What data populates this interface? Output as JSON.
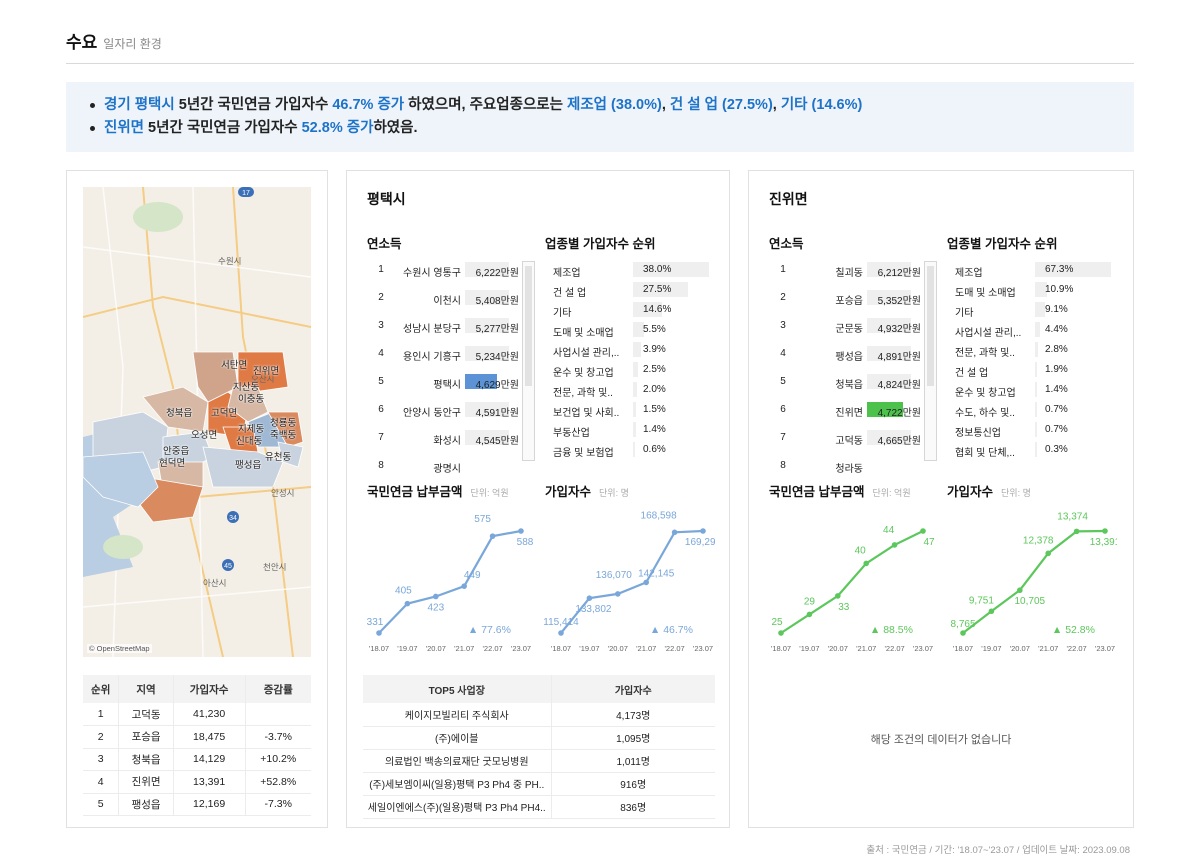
{
  "header": {
    "title": "수요",
    "subtitle": "일자리 환경"
  },
  "summary": {
    "line1": {
      "region": "경기 평택시",
      "t1": " 5년간 국민연금 가입자수 ",
      "rate": "46.7% 증가",
      "t2": " 하였으며, 주요업종으로는 ",
      "ind1": "제조업 (38.0%)",
      "sep1": ", ",
      "ind2": "건 설 업 (27.5%)",
      "sep2": ", ",
      "ind3": "기타 (14.6%)"
    },
    "line2": {
      "region": "진위면",
      "t1": " 5년간 국민연금 가입자수 ",
      "rate": "52.8% 증가",
      "t2": "하였음."
    }
  },
  "map": {
    "credit": "© OpenStreetMap",
    "labels": [
      "서탄면",
      "진위면",
      "지산동",
      "이충동",
      "청북읍",
      "고덕면",
      "오성면",
      "지제동",
      "신대동",
      "청룡동",
      "죽백동",
      "유천동",
      "안중읍",
      "현덕면",
      "팽성읍"
    ],
    "bg_labels": [
      "수원시",
      "오산시",
      "안성시",
      "천안시",
      "아산시"
    ]
  },
  "rank_table": {
    "headers": [
      "순위",
      "지역",
      "가입자수",
      "증감률"
    ],
    "rows": [
      [
        "1",
        "고덕동",
        "41,230",
        ""
      ],
      [
        "2",
        "포승읍",
        "18,475",
        "-3.7%"
      ],
      [
        "3",
        "청북읍",
        "14,129",
        "+10.2%"
      ],
      [
        "4",
        "진위면",
        "13,391",
        "+52.8%"
      ],
      [
        "5",
        "팽성읍",
        "12,169",
        "-7.3%"
      ]
    ]
  },
  "city": {
    "title": "평택시",
    "income_title": "연소득",
    "income": [
      {
        "no": "1",
        "name": "수원시 영통구",
        "value": "6,222만원",
        "hl": false
      },
      {
        "no": "2",
        "name": "이천시",
        "value": "5,408만원",
        "hl": false
      },
      {
        "no": "3",
        "name": "성남시 분당구",
        "value": "5,277만원",
        "hl": false
      },
      {
        "no": "4",
        "name": "용인시 기흥구",
        "value": "5,234만원",
        "hl": false
      },
      {
        "no": "5",
        "name": "평택시",
        "value": "4,629만원",
        "hl": true
      },
      {
        "no": "6",
        "name": "안양시 동안구",
        "value": "4,591만원",
        "hl": false
      },
      {
        "no": "7",
        "name": "화성시",
        "value": "4,545만원",
        "hl": false
      },
      {
        "no": "8",
        "name": "광명시",
        "value": "",
        "hl": false
      }
    ],
    "industry_title": "업종별 가입자수 순위",
    "industries": [
      {
        "name": "제조업",
        "value": "38.0%",
        "pct": 38.0
      },
      {
        "name": "건 설 업",
        "value": "27.5%",
        "pct": 27.5
      },
      {
        "name": "기타",
        "value": "14.6%",
        "pct": 14.6
      },
      {
        "name": "도매 및 소매업",
        "value": "5.5%",
        "pct": 5.5
      },
      {
        "name": "사업시설 관리,..",
        "value": "3.9%",
        "pct": 3.9
      },
      {
        "name": "운수 및 창고업",
        "value": "2.5%",
        "pct": 2.5
      },
      {
        "name": "전문, 과학 및..",
        "value": "2.0%",
        "pct": 2.0
      },
      {
        "name": "보건업 및 사회..",
        "value": "1.5%",
        "pct": 1.5
      },
      {
        "name": "부동산업",
        "value": "1.4%",
        "pct": 1.4
      },
      {
        "name": "금융 및 보험업",
        "value": "0.6%",
        "pct": 0.6
      }
    ],
    "pay_title": "국민연금 납부금액",
    "pay_unit": "단위: 억원",
    "members_title": "가입자수",
    "members_unit": "단위: 명",
    "top5": {
      "headers": [
        "TOP5 사업장",
        "가입자수"
      ],
      "rows": [
        [
          "케이지모빌리티 주식회사",
          "4,173명"
        ],
        [
          "(주)에이블",
          "1,095명"
        ],
        [
          "의료법인 백송의료재단 굿모닝병원",
          "1,011명"
        ],
        [
          "(주)세보엠이씨(일용)평택 P3 Ph4 중 PH..",
          "916명"
        ],
        [
          "세일이엔에스(주)(일용)평택 P3 Ph4 PH4..",
          "836명"
        ]
      ]
    }
  },
  "town": {
    "title": "진위면",
    "income_title": "연소득",
    "income": [
      {
        "no": "1",
        "name": "칠괴동",
        "value": "6,212만원",
        "hl": false
      },
      {
        "no": "2",
        "name": "포승읍",
        "value": "5,352만원",
        "hl": false
      },
      {
        "no": "3",
        "name": "군문동",
        "value": "4,932만원",
        "hl": false
      },
      {
        "no": "4",
        "name": "팽성읍",
        "value": "4,891만원",
        "hl": false
      },
      {
        "no": "5",
        "name": "청북읍",
        "value": "4,824만원",
        "hl": false
      },
      {
        "no": "6",
        "name": "진위면",
        "value": "4,722만원",
        "hl": true
      },
      {
        "no": "7",
        "name": "고덕동",
        "value": "4,665만원",
        "hl": false
      },
      {
        "no": "8",
        "name": "청라동",
        "value": "",
        "hl": false
      }
    ],
    "industry_title": "업종별 가입자수 순위",
    "industries": [
      {
        "name": "제조업",
        "value": "67.3%",
        "pct": 67.3
      },
      {
        "name": "도매 및 소매업",
        "value": "10.9%",
        "pct": 10.9
      },
      {
        "name": "기타",
        "value": "9.1%",
        "pct": 9.1
      },
      {
        "name": "사업시설 관리,..",
        "value": "4.4%",
        "pct": 4.4
      },
      {
        "name": "전문, 과학 및..",
        "value": "2.8%",
        "pct": 2.8
      },
      {
        "name": "건 설 업",
        "value": "1.9%",
        "pct": 1.9
      },
      {
        "name": "운수 및 창고업",
        "value": "1.4%",
        "pct": 1.4
      },
      {
        "name": "수도, 하수 및..",
        "value": "0.7%",
        "pct": 0.7
      },
      {
        "name": "정보통신업",
        "value": "0.7%",
        "pct": 0.7
      },
      {
        "name": "협회 및 단체,..",
        "value": "0.3%",
        "pct": 0.3
      }
    ],
    "pay_title": "국민연금 납부금액",
    "pay_unit": "단위: 억원",
    "members_title": "가입자수",
    "members_unit": "단위: 명",
    "nodata": "해당 조건의 데이터가 없습니다"
  },
  "footer": "출처 : 국민연금 / 기간: '18.07~'23.07 / 업데이트 날짜: 2023.09.08",
  "colors": {
    "accent": "#1e73c8",
    "city_line": "#7aa7d9",
    "town_line": "#5cc75c",
    "district_hl": "#e07a45"
  },
  "chart_data": [
    {
      "type": "line",
      "id": "city-pay",
      "title": "국민연금 납부금액",
      "x": [
        "'18.07",
        "'19.07",
        "'20.07",
        "'21.07",
        "'22.07",
        "'23.07"
      ],
      "values": [
        331,
        405,
        423,
        449,
        575,
        588
      ],
      "growth": "▲ 77.6%"
    },
    {
      "type": "line",
      "id": "city-members",
      "title": "가입자수",
      "x": [
        "'18.07",
        "'19.07",
        "'20.07",
        "'21.07",
        "'22.07",
        "'23.07"
      ],
      "values": [
        115414,
        133802,
        136070,
        142145,
        168598,
        169292
      ],
      "labels": [
        "115,414",
        "133,802",
        "136,070",
        "142,145",
        "168,598",
        "169,292"
      ],
      "growth": "▲ 46.7%"
    },
    {
      "type": "line",
      "id": "town-pay",
      "title": "국민연금 납부금액",
      "x": [
        "'18.07",
        "'19.07",
        "'20.07",
        "'21.07",
        "'22.07",
        "'23.07"
      ],
      "values": [
        25,
        29,
        33,
        40,
        44,
        47
      ],
      "growth": "▲ 88.5%"
    },
    {
      "type": "line",
      "id": "town-members",
      "title": "가입자수",
      "x": [
        "'18.07",
        "'19.07",
        "'20.07",
        "'21.07",
        "'22.07",
        "'23.07"
      ],
      "values": [
        8765,
        9751,
        10705,
        12378,
        13374,
        13391
      ],
      "labels": [
        "8,765",
        "9,751",
        "10,705",
        "12,378",
        "13,374",
        "13,391"
      ],
      "growth": "▲ 52.8%"
    }
  ]
}
